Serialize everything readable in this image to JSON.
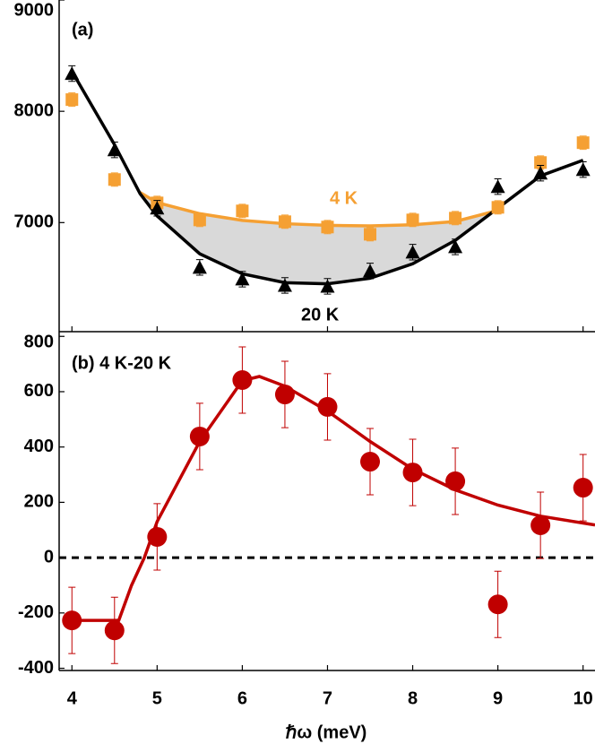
{
  "chart_data": [
    {
      "type": "scatter",
      "panel_label": "(a)",
      "xlim": [
        3.85,
        10.14
      ],
      "xticks": [
        4,
        5,
        6,
        7,
        8,
        9,
        10
      ],
      "ylim": [
        6020,
        9000
      ],
      "yticks": [
        7000,
        8000,
        9000
      ],
      "shade_color": "#d9d9d9",
      "series": [
        {
          "name": "4 K",
          "color": "#f5a033",
          "marker": "square",
          "x": [
            4,
            4.5,
            5,
            5.5,
            6,
            6.5,
            7,
            7.5,
            8,
            8.5,
            9,
            9.5,
            10
          ],
          "values": [
            8105,
            7387,
            7177,
            7024,
            7105,
            7008,
            6960,
            6895,
            7024,
            7040,
            7137,
            7540,
            7718
          ],
          "errors": [
            60,
            60,
            60,
            60,
            60,
            60,
            60,
            60,
            60,
            60,
            60,
            60,
            60
          ]
        },
        {
          "name": "20 K",
          "color": "#000000",
          "marker": "triangle",
          "x": [
            4,
            4.5,
            5,
            5.5,
            6,
            6.5,
            7,
            7.5,
            8,
            8.5,
            9,
            9.5,
            10
          ],
          "values": [
            8339,
            7653,
            7129,
            6597,
            6492,
            6435,
            6427,
            6565,
            6734,
            6782,
            7323,
            7444,
            7476
          ],
          "errors": [
            70,
            70,
            70,
            70,
            70,
            70,
            70,
            70,
            70,
            70,
            70,
            70,
            70
          ]
        },
        {
          "color": "#f5a033",
          "marker": "line",
          "x": [
            4.8,
            5,
            5.5,
            6,
            6.5,
            7,
            7.5,
            8,
            8.5,
            9
          ],
          "values": [
            7270,
            7180,
            7080,
            7020,
            6990,
            6975,
            6970,
            6980,
            7010,
            7110
          ]
        },
        {
          "color": "#000000",
          "marker": "line",
          "x": [
            4,
            4.5,
            4.8,
            5,
            5.5,
            6,
            6.5,
            7,
            7.5,
            8,
            8.5,
            9,
            9.5,
            10
          ],
          "values": [
            8360,
            7700,
            7260,
            7060,
            6720,
            6540,
            6460,
            6450,
            6500,
            6630,
            6840,
            7130,
            7420,
            7560
          ]
        }
      ]
    },
    {
      "type": "scatter",
      "panel_label": "(b) 4 K-20 K",
      "xlabel": "ℏω (meV)",
      "xlim": [
        3.85,
        10.14
      ],
      "xticks": [
        4,
        5,
        6,
        7,
        8,
        9,
        10
      ],
      "ylim": [
        -408,
        817
      ],
      "yticks": [
        -400,
        -200,
        0,
        200,
        400,
        600,
        800
      ],
      "zero_line": true,
      "series": [
        {
          "color": "#c00000",
          "marker": "circle",
          "x": [
            4,
            4.5,
            5,
            5.5,
            6,
            6.5,
            7,
            7.5,
            8,
            8.5,
            9,
            9.5,
            10
          ],
          "values": [
            -227,
            -263,
            75,
            438,
            642,
            590,
            545,
            347,
            308,
            276,
            -169,
            117,
            253
          ],
          "errors": [
            120,
            120,
            120,
            120,
            120,
            120,
            120,
            120,
            120,
            120,
            120,
            120,
            120
          ]
        },
        {
          "color": "#c00000",
          "marker": "line",
          "x": [
            4,
            4.55,
            4.7,
            4.85,
            5,
            5.5,
            6,
            6.2,
            6.5,
            7,
            7.5,
            8,
            8.5,
            9,
            9.5,
            10,
            10.14
          ],
          "values": [
            -227,
            -227,
            -100,
            0,
            130,
            420,
            640,
            655,
            620,
            530,
            420,
            320,
            245,
            190,
            150,
            125,
            118
          ]
        }
      ]
    }
  ]
}
